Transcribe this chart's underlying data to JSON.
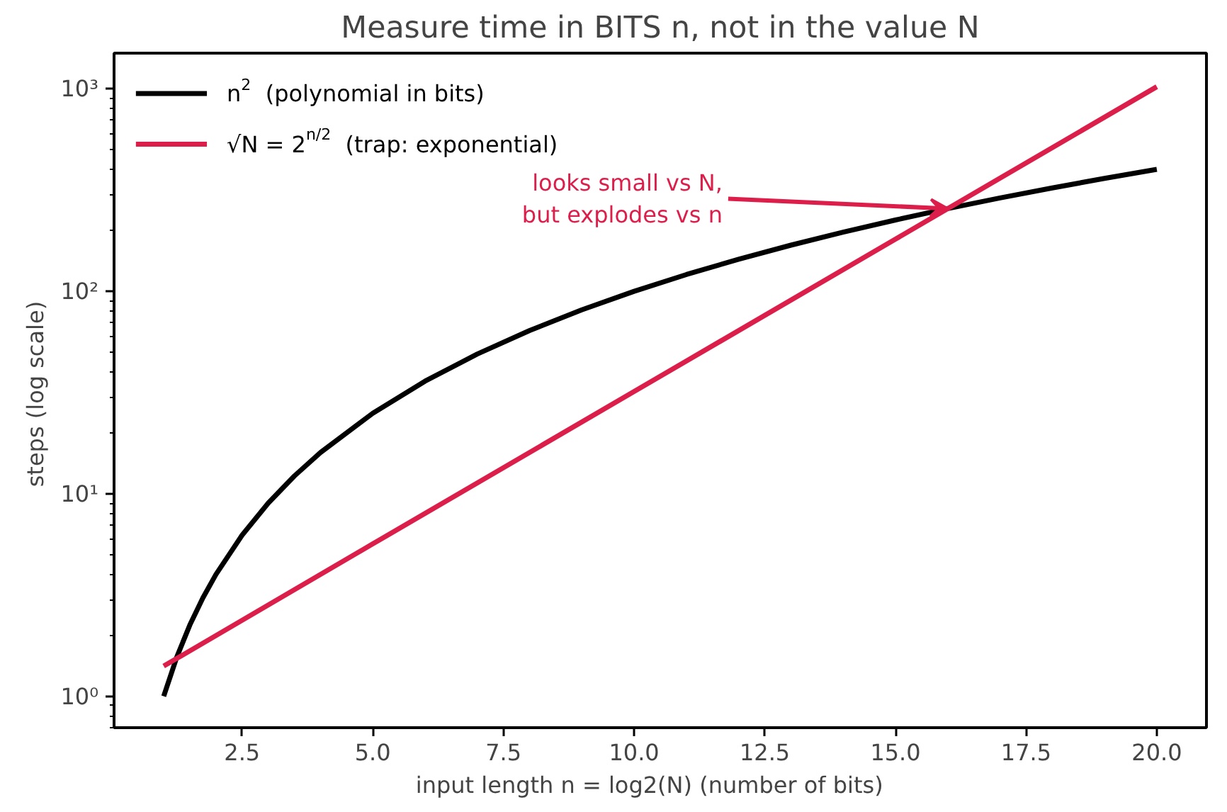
{
  "chart_data": {
    "type": "line",
    "title": "Measure time in BITS n, not in the value N",
    "xlabel": "input length  n = log2(N)   (number of bits)",
    "ylabel": "steps  (log scale)",
    "log": "y",
    "legend": "top left",
    "grid": false,
    "marker": "none",
    "line_style": "solid",
    "xlim": [
      0.05,
      20.95
    ],
    "xticks": [
      {
        "value": 2.5,
        "label": "2.5"
      },
      {
        "value": 5,
        "label": "5.0"
      },
      {
        "value": 7.5,
        "label": "7.5"
      },
      {
        "value": 10,
        "label": "10.0"
      },
      {
        "value": 12.5,
        "label": "12.5"
      },
      {
        "value": 15,
        "label": "15.0"
      },
      {
        "value": 17.5,
        "label": "17.5"
      },
      {
        "value": 20,
        "label": "20.0"
      }
    ],
    "ylim": [
      0.7,
      1500
    ],
    "yticks": [
      {
        "value": 1,
        "label": "10⁰"
      },
      {
        "value": 10,
        "label": "10¹"
      },
      {
        "value": 100,
        "label": "10²"
      },
      {
        "value": 1000,
        "label": "10³"
      }
    ],
    "series": [
      {
        "name": "n$^{2}$  (polynomial in bits)",
        "color": "#000000",
        "x": [
          1,
          1.25,
          1.5,
          1.75,
          2,
          2.5,
          3,
          3.5,
          4,
          5,
          6,
          7,
          8,
          9,
          10,
          11,
          12,
          13,
          14,
          15,
          16,
          17,
          18,
          19,
          20
        ],
        "values": [
          1,
          1.5625,
          2.25,
          3.0625,
          4,
          6.25,
          9,
          12.25,
          16,
          25,
          36,
          49,
          64,
          81,
          100,
          121,
          144,
          169,
          196,
          225,
          256,
          289,
          324,
          361,
          400
        ]
      },
      {
        "name": "√N = 2$^{n/2}$  (trap: exponential)",
        "color": "#dc1e4b",
        "x": [
          1,
          5,
          10,
          15,
          20
        ],
        "values": [
          1.41,
          5.66,
          32,
          181,
          1024
        ]
      }
    ],
    "annotations": [
      {
        "text": "looks small vs N,\nbut explodes vs n",
        "x": 16,
        "y": 256
      }
    ]
  }
}
